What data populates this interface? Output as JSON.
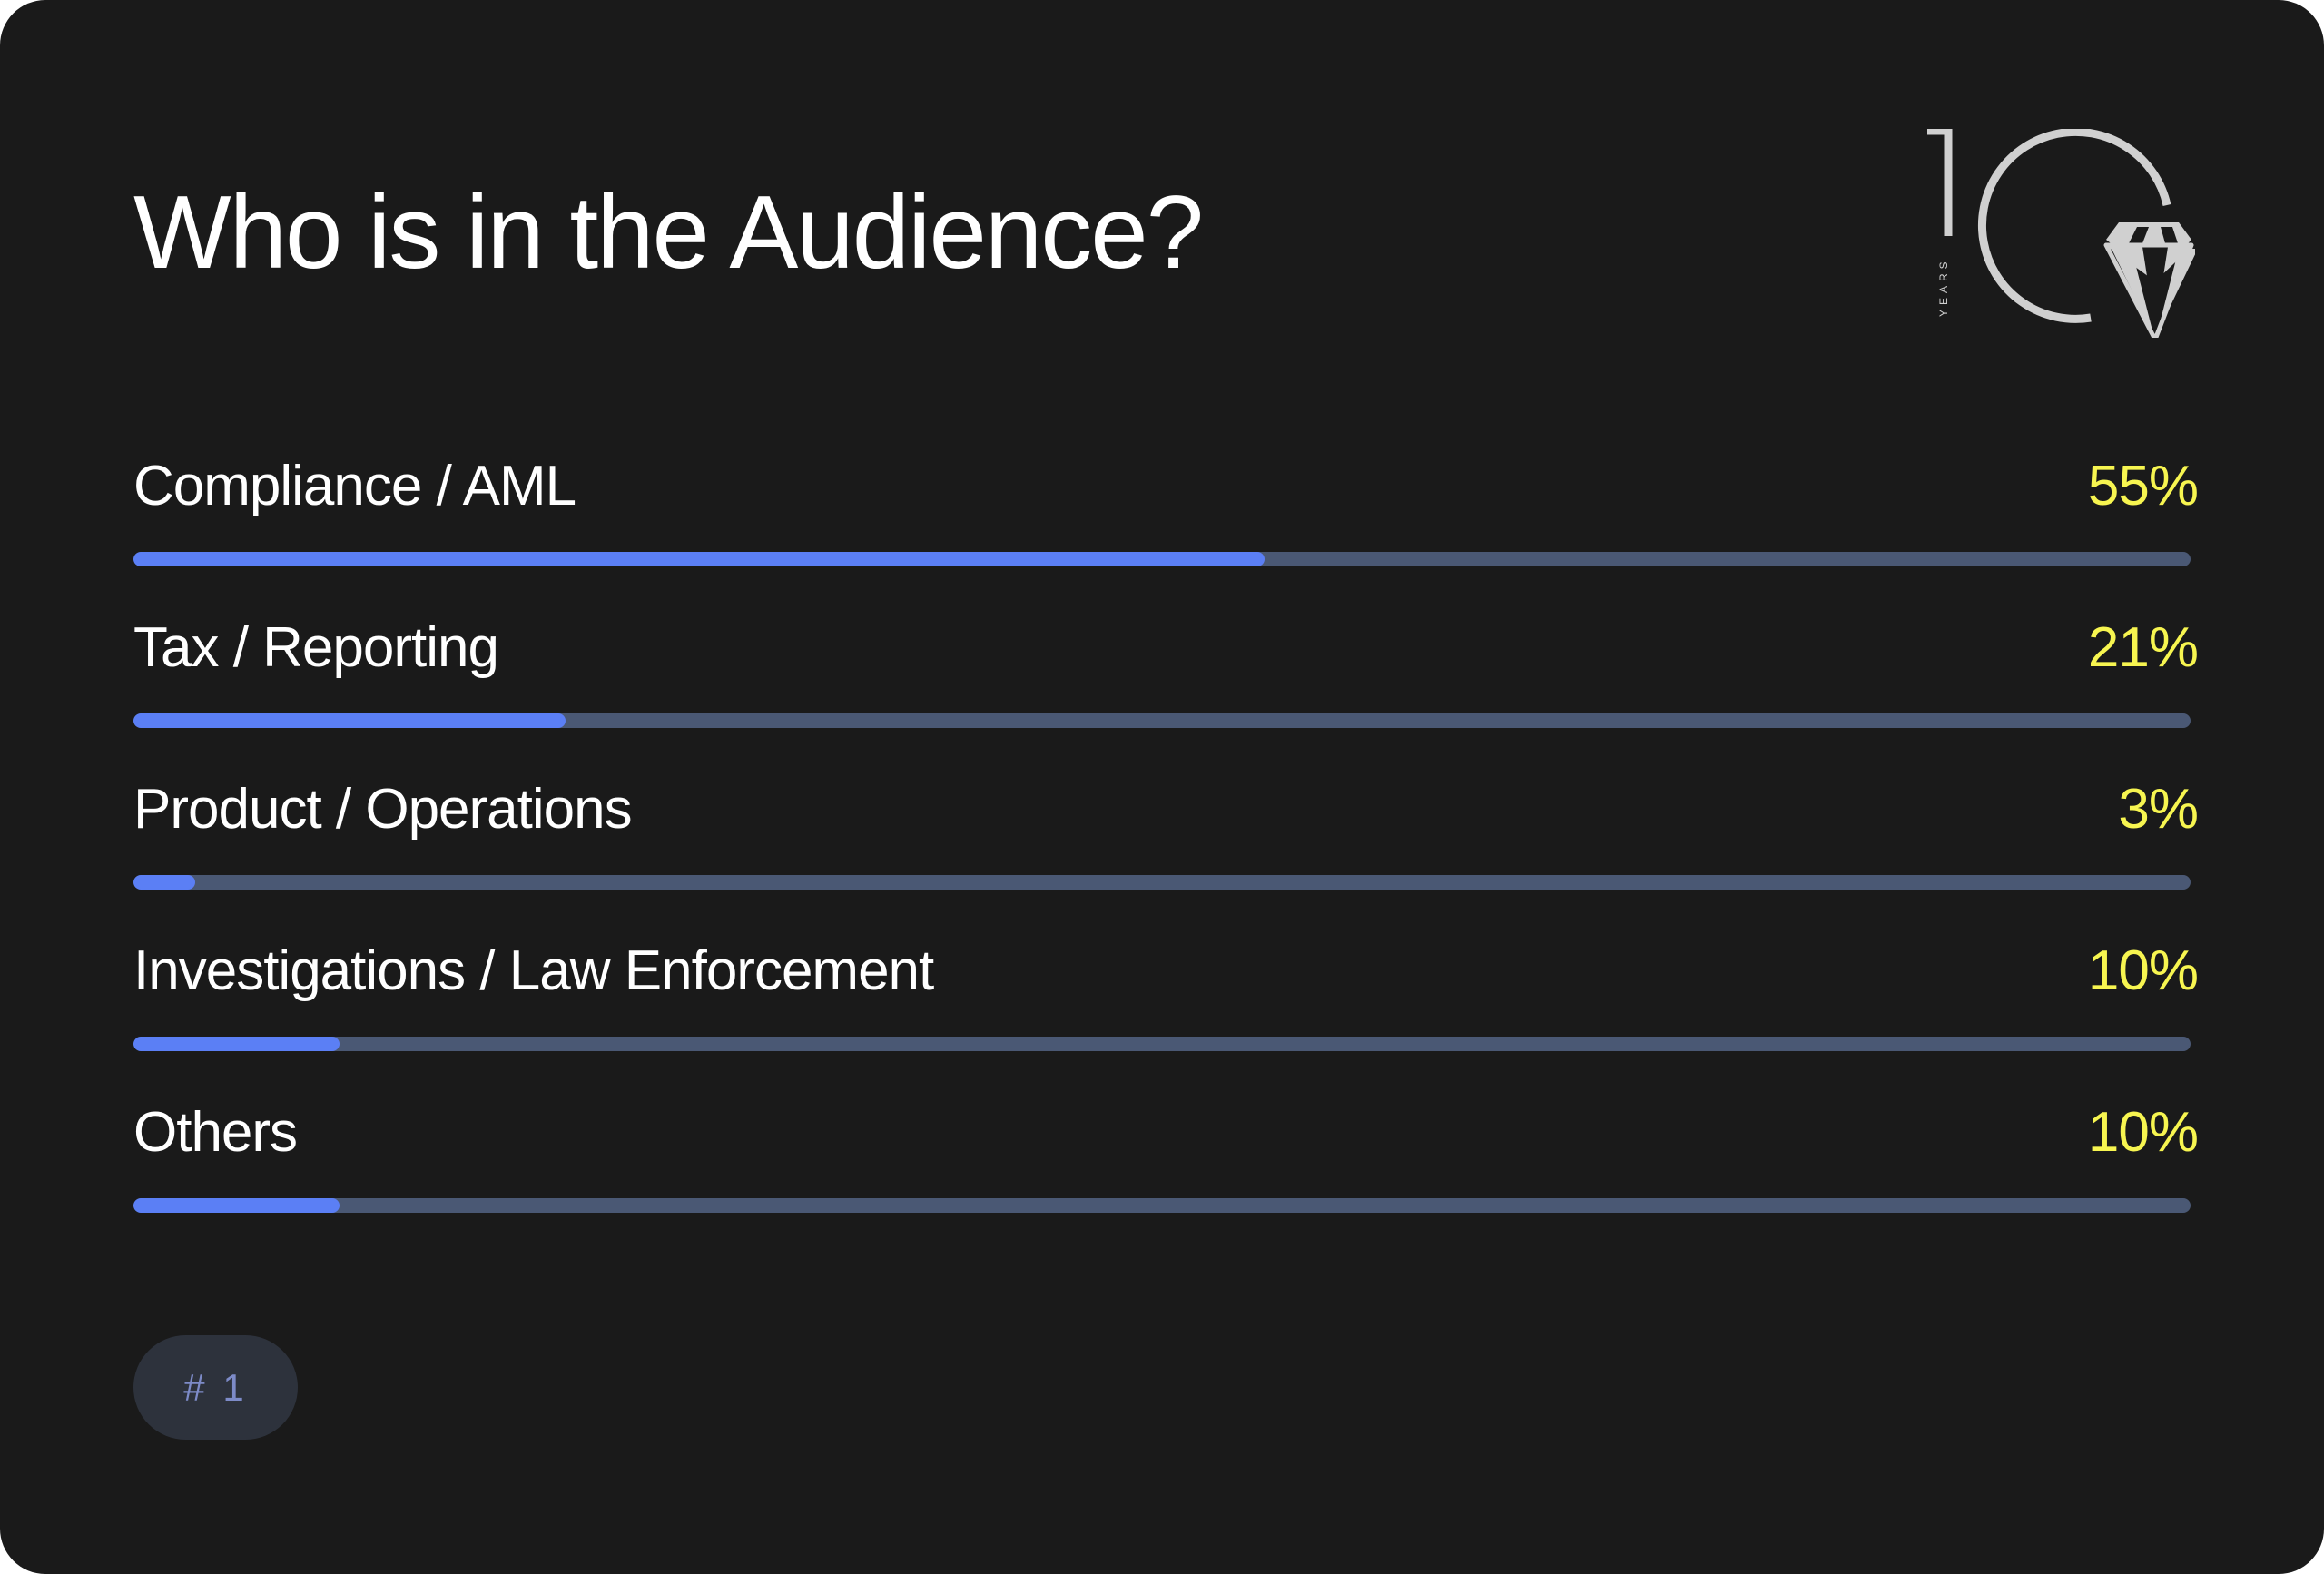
{
  "title": "Who is in the Audience?",
  "logo": {
    "text": "YEARS",
    "number": "10",
    "icon": "diamond-icon",
    "color": "#d0d0d0"
  },
  "colors": {
    "background": "#1a1a1a",
    "bar_fill": "#5b7ff5",
    "bar_track": "#4a5874",
    "percent_text": "#f7f550"
  },
  "rows": [
    {
      "label": "Compliance / AML",
      "percent": "55%",
      "value": 55
    },
    {
      "label": "Tax / Reporting",
      "percent": "21%",
      "value": 21
    },
    {
      "label": "Product / Operations",
      "percent": "3%",
      "value": 3
    },
    {
      "label": "Investigations / Law Enforcement",
      "percent": "10%",
      "value": 10
    },
    {
      "label": "Others",
      "percent": "10%",
      "value": 10
    }
  ],
  "badge": "# 1"
}
